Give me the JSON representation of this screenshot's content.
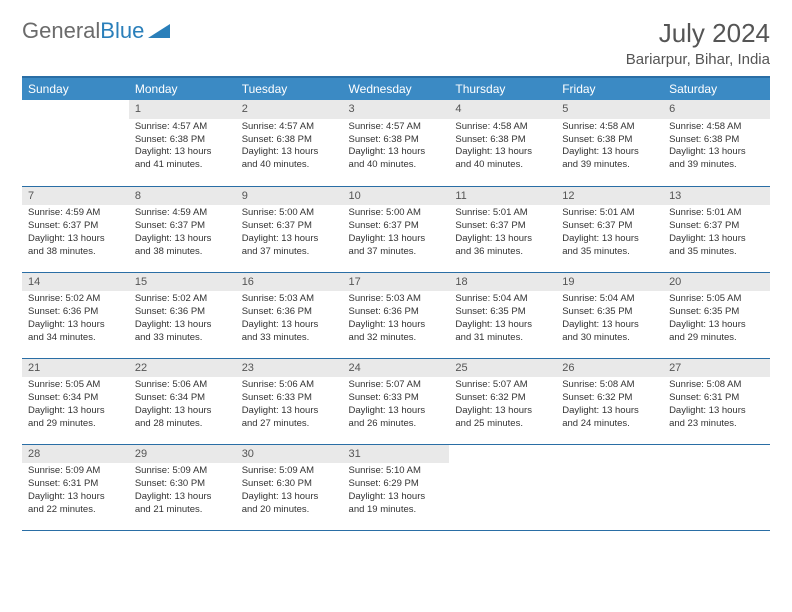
{
  "logo": {
    "part1": "General",
    "part2": "Blue"
  },
  "title": "July 2024",
  "location": "Bariarpur, Bihar, India",
  "colors": {
    "header_bg": "#3b8ac4",
    "header_text": "#ffffff",
    "rule": "#2a6ea5",
    "daynum_bg": "#e9e9e9",
    "logo_gray": "#6b6b6b",
    "logo_blue": "#2a7fba"
  },
  "weekdays": [
    "Sunday",
    "Monday",
    "Tuesday",
    "Wednesday",
    "Thursday",
    "Friday",
    "Saturday"
  ],
  "weeks": [
    [
      null,
      {
        "n": "1",
        "sr": "4:57 AM",
        "ss": "6:38 PM",
        "dl": "13 hours and 41 minutes."
      },
      {
        "n": "2",
        "sr": "4:57 AM",
        "ss": "6:38 PM",
        "dl": "13 hours and 40 minutes."
      },
      {
        "n": "3",
        "sr": "4:57 AM",
        "ss": "6:38 PM",
        "dl": "13 hours and 40 minutes."
      },
      {
        "n": "4",
        "sr": "4:58 AM",
        "ss": "6:38 PM",
        "dl": "13 hours and 40 minutes."
      },
      {
        "n": "5",
        "sr": "4:58 AM",
        "ss": "6:38 PM",
        "dl": "13 hours and 39 minutes."
      },
      {
        "n": "6",
        "sr": "4:58 AM",
        "ss": "6:38 PM",
        "dl": "13 hours and 39 minutes."
      }
    ],
    [
      {
        "n": "7",
        "sr": "4:59 AM",
        "ss": "6:37 PM",
        "dl": "13 hours and 38 minutes."
      },
      {
        "n": "8",
        "sr": "4:59 AM",
        "ss": "6:37 PM",
        "dl": "13 hours and 38 minutes."
      },
      {
        "n": "9",
        "sr": "5:00 AM",
        "ss": "6:37 PM",
        "dl": "13 hours and 37 minutes."
      },
      {
        "n": "10",
        "sr": "5:00 AM",
        "ss": "6:37 PM",
        "dl": "13 hours and 37 minutes."
      },
      {
        "n": "11",
        "sr": "5:01 AM",
        "ss": "6:37 PM",
        "dl": "13 hours and 36 minutes."
      },
      {
        "n": "12",
        "sr": "5:01 AM",
        "ss": "6:37 PM",
        "dl": "13 hours and 35 minutes."
      },
      {
        "n": "13",
        "sr": "5:01 AM",
        "ss": "6:37 PM",
        "dl": "13 hours and 35 minutes."
      }
    ],
    [
      {
        "n": "14",
        "sr": "5:02 AM",
        "ss": "6:36 PM",
        "dl": "13 hours and 34 minutes."
      },
      {
        "n": "15",
        "sr": "5:02 AM",
        "ss": "6:36 PM",
        "dl": "13 hours and 33 minutes."
      },
      {
        "n": "16",
        "sr": "5:03 AM",
        "ss": "6:36 PM",
        "dl": "13 hours and 33 minutes."
      },
      {
        "n": "17",
        "sr": "5:03 AM",
        "ss": "6:36 PM",
        "dl": "13 hours and 32 minutes."
      },
      {
        "n": "18",
        "sr": "5:04 AM",
        "ss": "6:35 PM",
        "dl": "13 hours and 31 minutes."
      },
      {
        "n": "19",
        "sr": "5:04 AM",
        "ss": "6:35 PM",
        "dl": "13 hours and 30 minutes."
      },
      {
        "n": "20",
        "sr": "5:05 AM",
        "ss": "6:35 PM",
        "dl": "13 hours and 29 minutes."
      }
    ],
    [
      {
        "n": "21",
        "sr": "5:05 AM",
        "ss": "6:34 PM",
        "dl": "13 hours and 29 minutes."
      },
      {
        "n": "22",
        "sr": "5:06 AM",
        "ss": "6:34 PM",
        "dl": "13 hours and 28 minutes."
      },
      {
        "n": "23",
        "sr": "5:06 AM",
        "ss": "6:33 PM",
        "dl": "13 hours and 27 minutes."
      },
      {
        "n": "24",
        "sr": "5:07 AM",
        "ss": "6:33 PM",
        "dl": "13 hours and 26 minutes."
      },
      {
        "n": "25",
        "sr": "5:07 AM",
        "ss": "6:32 PM",
        "dl": "13 hours and 25 minutes."
      },
      {
        "n": "26",
        "sr": "5:08 AM",
        "ss": "6:32 PM",
        "dl": "13 hours and 24 minutes."
      },
      {
        "n": "27",
        "sr": "5:08 AM",
        "ss": "6:31 PM",
        "dl": "13 hours and 23 minutes."
      }
    ],
    [
      {
        "n": "28",
        "sr": "5:09 AM",
        "ss": "6:31 PM",
        "dl": "13 hours and 22 minutes."
      },
      {
        "n": "29",
        "sr": "5:09 AM",
        "ss": "6:30 PM",
        "dl": "13 hours and 21 minutes."
      },
      {
        "n": "30",
        "sr": "5:09 AM",
        "ss": "6:30 PM",
        "dl": "13 hours and 20 minutes."
      },
      {
        "n": "31",
        "sr": "5:10 AM",
        "ss": "6:29 PM",
        "dl": "13 hours and 19 minutes."
      },
      null,
      null,
      null
    ]
  ],
  "labels": {
    "sunrise": "Sunrise: ",
    "sunset": "Sunset: ",
    "daylight": "Daylight: "
  }
}
